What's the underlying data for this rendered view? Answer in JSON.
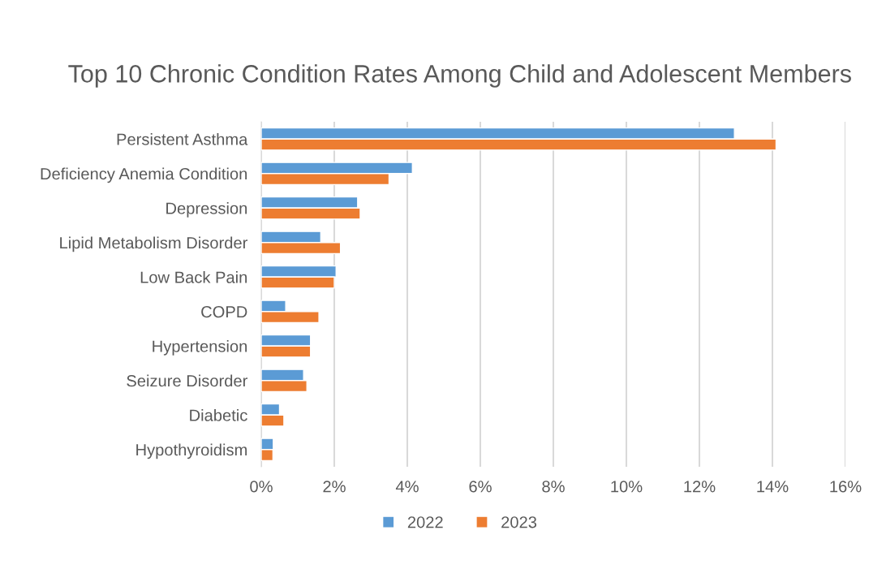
{
  "chart_data": {
    "type": "bar",
    "orientation": "horizontal",
    "title": "Top 10 Chronic Condition Rates Among Child and Adolescent Members",
    "categories": [
      "Persistent Asthma",
      "Deficiency Anemia Condition",
      "Depression",
      "Lipid Metabolism Disorder",
      "Low Back Pain",
      "COPD",
      "Hypertension",
      "Seizure Disorder",
      "Diabetic",
      "Hypothyroidism"
    ],
    "series": [
      {
        "name": "2022",
        "color": "#5b9bd5",
        "values": [
          12.96,
          4.14,
          2.64,
          1.63,
          2.05,
          0.67,
          1.35,
          1.16,
          0.5,
          0.33
        ]
      },
      {
        "name": "2023",
        "color": "#ed7d31",
        "values": [
          14.1,
          3.5,
          2.71,
          2.17,
          2.0,
          1.58,
          1.35,
          1.25,
          0.62,
          0.32
        ]
      }
    ],
    "xlim": [
      0,
      16
    ],
    "xticks": [
      {
        "value": 0,
        "label": "0%"
      },
      {
        "value": 2,
        "label": "2%"
      },
      {
        "value": 4,
        "label": "4%"
      },
      {
        "value": 6,
        "label": "6%"
      },
      {
        "value": 8,
        "label": "8%"
      },
      {
        "value": 10,
        "label": "10%"
      },
      {
        "value": 12,
        "label": "12%"
      },
      {
        "value": 14,
        "label": "14%"
      },
      {
        "value": 16,
        "label": "16%"
      }
    ],
    "grid": "x",
    "legend": "bottom"
  }
}
